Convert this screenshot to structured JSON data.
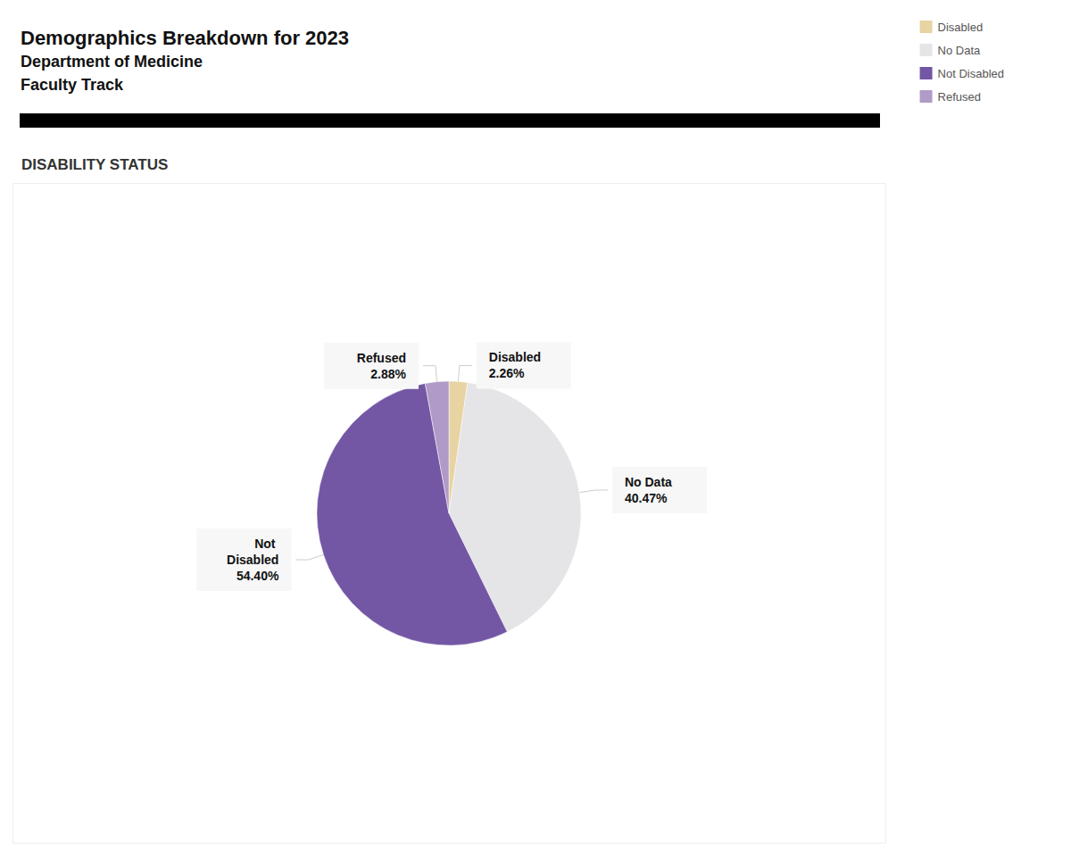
{
  "chart_data": {
    "type": "pie",
    "title": "Demographics Breakdown for 2023",
    "subtitle": [
      "Department of Medicine",
      "Faculty Track"
    ],
    "section_title": "DISABILITY STATUS",
    "categories": [
      "Disabled",
      "No Data",
      "Not Disabled",
      "Refused"
    ],
    "values": [
      2.26,
      40.47,
      54.4,
      2.88
    ],
    "value_labels": [
      "2.26%",
      "40.47%",
      "54.40%",
      "2.88%"
    ],
    "colors": [
      "#e8d3a2",
      "#e5e5e8",
      "#7357a4",
      "#b09ac7"
    ],
    "data_labels": true,
    "legend": "top-right"
  }
}
